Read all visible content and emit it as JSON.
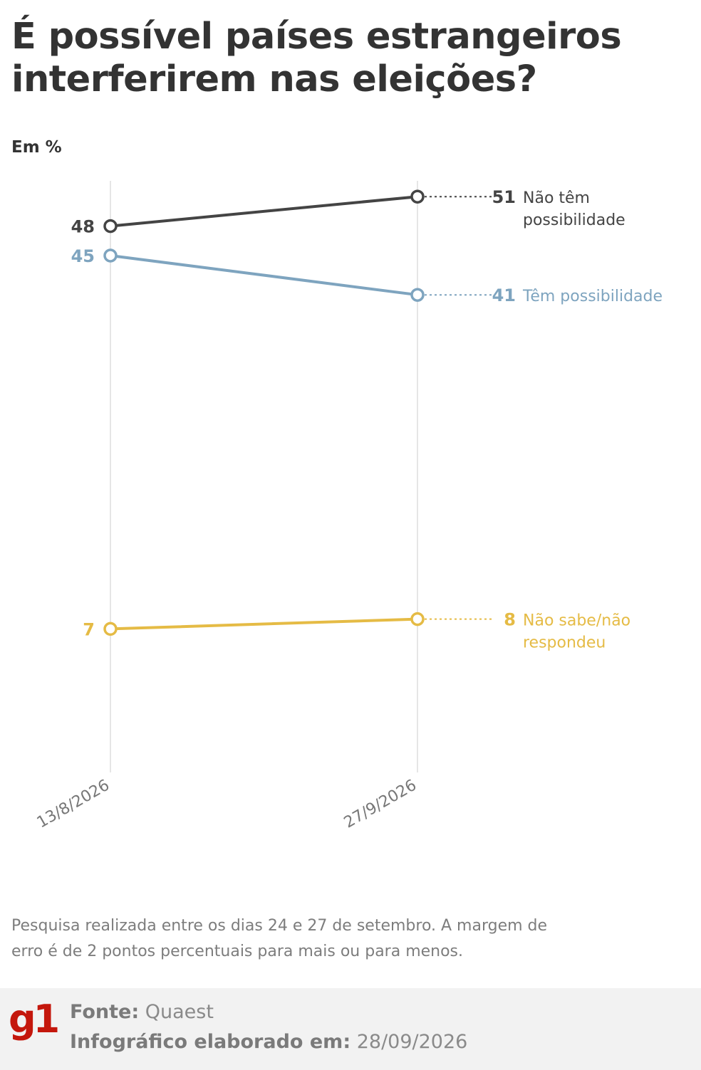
{
  "title": "É possível países estrangeiros interferirem nas eleições?",
  "unit_label": "Em %",
  "colors": {
    "nao_tem": "#444444",
    "tem": "#7ea4bf",
    "nao_sabe": "#e5bb45",
    "grid": "#dddddd",
    "brand": "#c4170c"
  },
  "chart_data": {
    "type": "line",
    "x": [
      "13/8/2026",
      "27/9/2026"
    ],
    "series": [
      {
        "name": "Não têm possibilidade",
        "label_lines": [
          "Não têm",
          "possibilidade"
        ],
        "values": [
          48,
          51
        ],
        "color": "#444444"
      },
      {
        "name": "Têm possibilidade",
        "label_lines": [
          "Têm possibilidade"
        ],
        "values": [
          45,
          41
        ],
        "color": "#7ea4bf"
      },
      {
        "name": "Não sabe/não respondeu",
        "label_lines": [
          "Não sabe/não",
          "respondeu"
        ],
        "values": [
          7,
          8
        ],
        "color": "#e5bb45"
      }
    ],
    "grid": "vertical lines at each date"
  },
  "note": "Pesquisa realizada entre os dias 24 e 27 de setembro. A margem de erro é de 2 pontos percentuais para mais ou para menos.",
  "footer": {
    "logo": "g1",
    "source_label": "Fonte:",
    "source_value": "Quaest",
    "date_label": "Infográfico elaborado em:",
    "date_value": "28/09/2026"
  }
}
